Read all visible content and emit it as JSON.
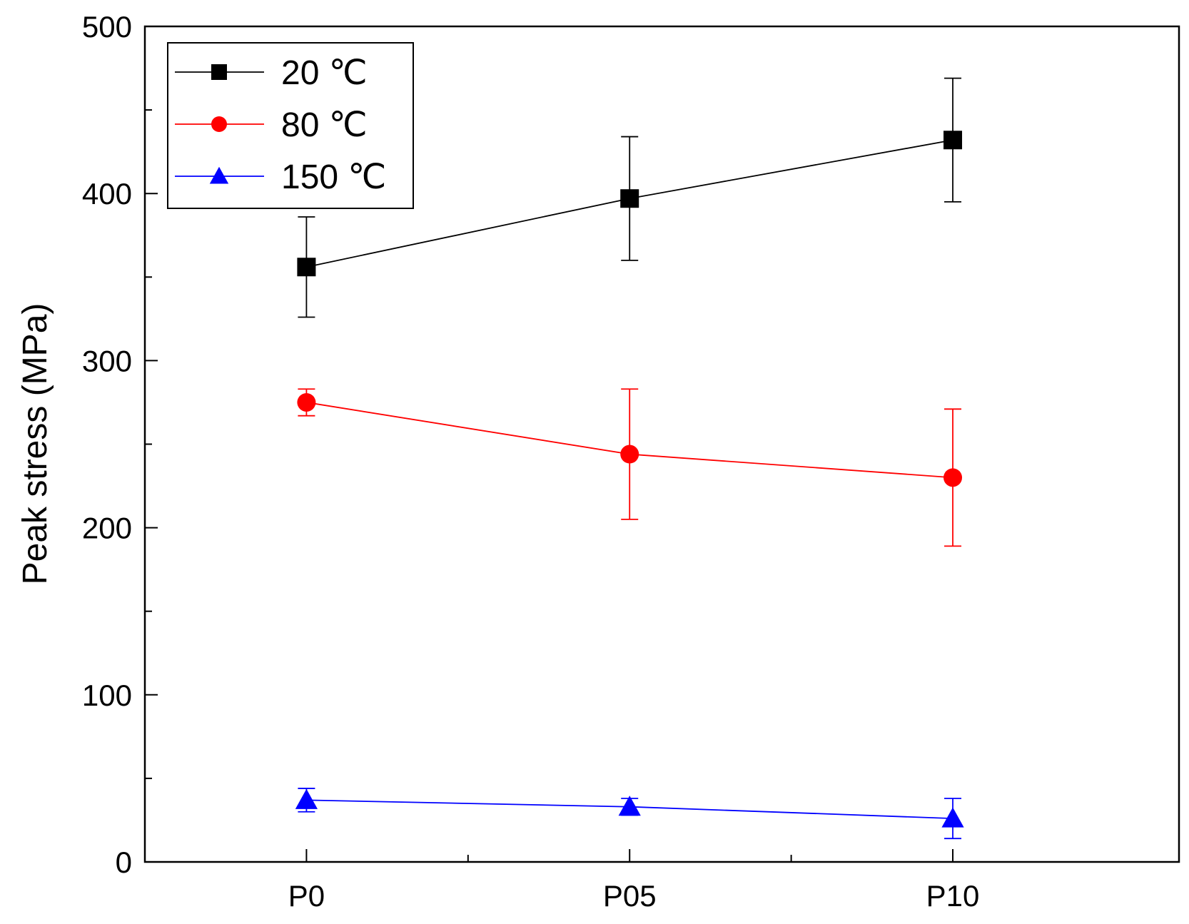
{
  "chart_data": {
    "type": "line",
    "title": "",
    "xlabel": "",
    "ylabel": "Peak stress (MPa)",
    "categories": [
      "P0",
      "P05",
      "P10"
    ],
    "ylim": [
      0,
      500
    ],
    "yticks": [
      0,
      100,
      200,
      300,
      400,
      500
    ],
    "grid": false,
    "legend_position": "top-left",
    "series": [
      {
        "name": "20 ℃",
        "color": "#000000",
        "marker": "square",
        "values": [
          356,
          397,
          432
        ],
        "errors": [
          30,
          37,
          37
        ]
      },
      {
        "name": "80 ℃",
        "color": "#ff0000",
        "marker": "circle",
        "values": [
          275,
          244,
          230
        ],
        "errors": [
          8,
          39,
          41
        ]
      },
      {
        "name": "150 ℃",
        "color": "#0000ff",
        "marker": "triangle",
        "values": [
          37,
          33,
          26
        ],
        "errors": [
          7,
          5,
          12
        ]
      }
    ]
  }
}
